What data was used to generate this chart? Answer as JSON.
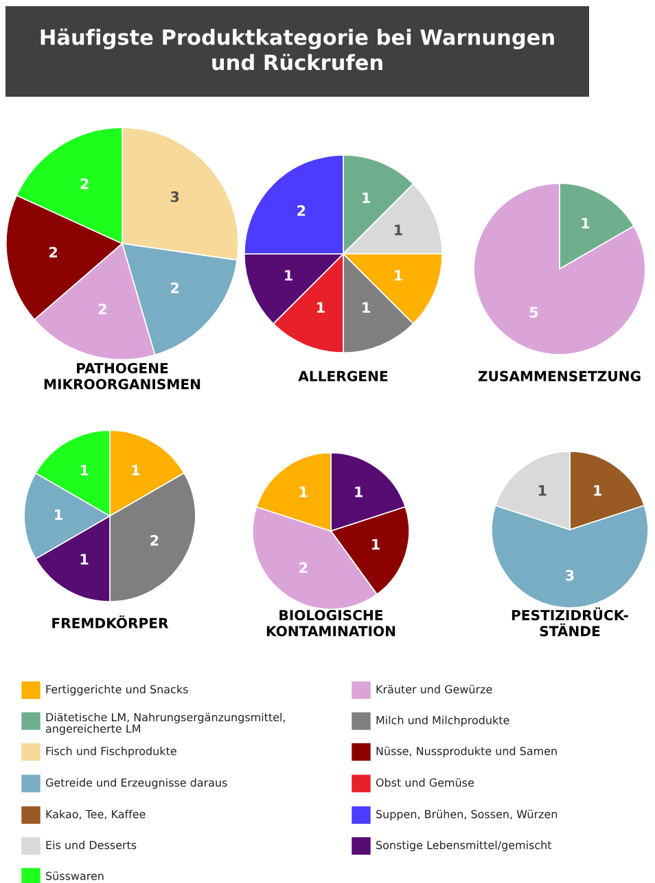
{
  "chart_data": [
    {
      "type": "other",
      "title": "Häufigste Produktkategorie bei Warnungen\nund Rückrufen"
    },
    {
      "type": "pie",
      "title": "PATHOGENE\nMIKROORGANISMEN",
      "data_labels": true,
      "categories": [
        null,
        null,
        null,
        null,
        null
      ],
      "values": [
        3,
        2,
        2,
        2,
        2
      ],
      "colors": [
        "#f7d99a",
        "#78adc4",
        "#dba4d8",
        "#8b0000",
        "#1eff1e"
      ]
    },
    {
      "type": "pie",
      "title": "ALLERGENE",
      "data_labels": true,
      "categories": [
        null,
        null,
        null,
        null,
        null,
        null,
        null
      ],
      "values": [
        1,
        1,
        1,
        1,
        1,
        1,
        2
      ],
      "colors": [
        "#6fae8c",
        "#d9d9d9",
        "#ffb000",
        "#7f7f7f",
        "#e8202a",
        "#560c73",
        "#4b3cff"
      ]
    },
    {
      "type": "pie",
      "title": "ZUSAMMENSETZUNG",
      "data_labels": true,
      "categories": [
        null,
        null
      ],
      "values": [
        1,
        5
      ],
      "colors": [
        "#6fae8c",
        "#dba4d8"
      ]
    },
    {
      "type": "pie",
      "title": "FREMDKÖRPER",
      "data_labels": true,
      "categories": [
        null,
        null,
        null,
        null,
        null
      ],
      "values": [
        1,
        2,
        1,
        1,
        1
      ],
      "colors": [
        "#ffb000",
        "#7f7f7f",
        "#560c73",
        "#78adc4",
        "#1eff1e"
      ]
    },
    {
      "type": "pie",
      "title": "BIOLOGISCHE\nKONTAMINATION",
      "data_labels": true,
      "categories": [
        null,
        null,
        null,
        null
      ],
      "values": [
        1,
        1,
        2,
        1
      ],
      "colors": [
        "#560c73",
        "#8b0000",
        "#dba4d8",
        "#ffb000"
      ]
    },
    {
      "type": "pie",
      "title": "PESTIZIDRÜCK-\nSTÄNDE",
      "data_labels": true,
      "categories": [
        null,
        null,
        null
      ],
      "values": [
        1,
        3,
        1
      ],
      "colors": [
        "#9a5a24",
        "#78adc4",
        "#d9d9d9"
      ]
    },
    {
      "type": "other",
      "categories": [
        "Fertiggerichte und Snacks",
        "Diätetische LM, Nahrungsergänzungsmittel,\nangereicherte LM",
        "Fisch und Fischprodukte",
        "Getreide und Erzeugnisse daraus",
        "Kakao, Tee, Kaffee",
        "Eis und Desserts",
        "Süsswaren",
        "Kräuter und Gewürze",
        "Milch und Milchprodukte",
        "Nüsse, Nussprodukte und Samen",
        "Obst und Gemüse",
        "Suppen, Brühen, Sossen, Würzen",
        "Sonstige Lebensmittel/gemischt"
      ],
      "colors": [
        "#ffb000",
        "#6fae8c",
        "#f7d99a",
        "#78adc4",
        "#9a5a24",
        "#d9d9d9",
        "#1eff1e",
        "#dba4d8",
        "#7f7f7f",
        "#8b0000",
        "#e8202a",
        "#4b3cff",
        "#560c73"
      ]
    }
  ]
}
